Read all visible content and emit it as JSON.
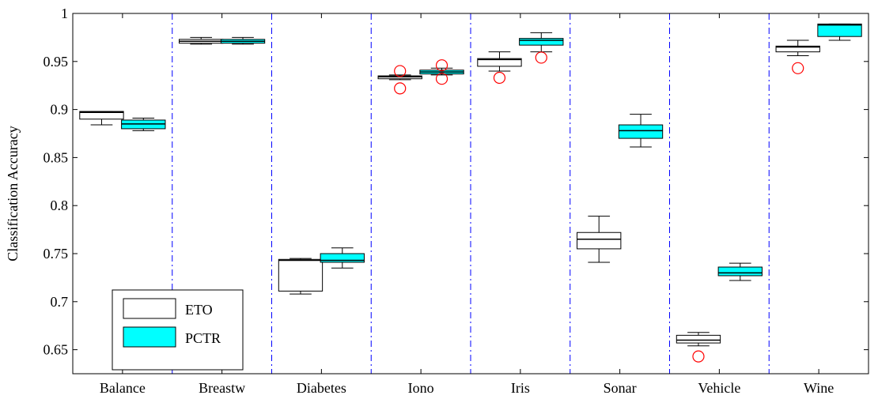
{
  "chart_data": {
    "type": "boxplot",
    "title": "",
    "xlabel": "",
    "ylabel": "Classification Accuracy",
    "ylim": [
      0.625,
      1.0
    ],
    "yticks": [
      0.65,
      0.7,
      0.75,
      0.8,
      0.85,
      0.9,
      0.95,
      1
    ],
    "ytick_labels": [
      "0.65",
      "0.7",
      "0.75",
      "0.8",
      "0.85",
      "0.9",
      "0.95",
      "1"
    ],
    "categories": [
      "Balance",
      "Breastw",
      "Diabetes",
      "Iono",
      "Iris",
      "Sonar",
      "Vehicle",
      "Wine"
    ],
    "grid": false,
    "separators": "dash-dot vertical lines between categories",
    "legend_position": "bottom-left",
    "colors": {
      "ETO": "#ffffff",
      "PCTR": "#00ffff",
      "outlier": "#ff0000",
      "separator": "#0000ff"
    },
    "series": [
      {
        "name": "ETO",
        "boxes": [
          {
            "whisker_low": 0.884,
            "q1": 0.89,
            "median": 0.897,
            "q3": 0.898,
            "whisker_high": 0.898,
            "outliers": []
          },
          {
            "whisker_low": 0.968,
            "q1": 0.969,
            "median": 0.971,
            "q3": 0.973,
            "whisker_high": 0.975,
            "outliers": []
          },
          {
            "whisker_low": 0.708,
            "q1": 0.711,
            "median": 0.743,
            "q3": 0.744,
            "whisker_high": 0.745,
            "outliers": []
          },
          {
            "whisker_low": 0.931,
            "q1": 0.932,
            "median": 0.934,
            "q3": 0.935,
            "whisker_high": 0.936,
            "outliers": [
              0.94,
              0.922
            ]
          },
          {
            "whisker_low": 0.94,
            "q1": 0.945,
            "median": 0.952,
            "q3": 0.953,
            "whisker_high": 0.96,
            "outliers": [
              0.933
            ]
          },
          {
            "whisker_low": 0.741,
            "q1": 0.755,
            "median": 0.765,
            "q3": 0.772,
            "whisker_high": 0.789,
            "outliers": []
          },
          {
            "whisker_low": 0.654,
            "q1": 0.657,
            "median": 0.66,
            "q3": 0.665,
            "whisker_high": 0.668,
            "outliers": [
              0.643
            ]
          },
          {
            "whisker_low": 0.956,
            "q1": 0.96,
            "median": 0.965,
            "q3": 0.966,
            "whisker_high": 0.972,
            "outliers": [
              0.943
            ]
          }
        ]
      },
      {
        "name": "PCTR",
        "boxes": [
          {
            "whisker_low": 0.878,
            "q1": 0.88,
            "median": 0.885,
            "q3": 0.889,
            "whisker_high": 0.891,
            "outliers": []
          },
          {
            "whisker_low": 0.968,
            "q1": 0.969,
            "median": 0.971,
            "q3": 0.973,
            "whisker_high": 0.975,
            "outliers": []
          },
          {
            "whisker_low": 0.735,
            "q1": 0.741,
            "median": 0.743,
            "q3": 0.75,
            "whisker_high": 0.756,
            "outliers": []
          },
          {
            "whisker_low": 0.936,
            "q1": 0.937,
            "median": 0.939,
            "q3": 0.941,
            "whisker_high": 0.943,
            "outliers": [
              0.946,
              0.932
            ]
          },
          {
            "whisker_low": 0.96,
            "q1": 0.967,
            "median": 0.972,
            "q3": 0.974,
            "whisker_high": 0.98,
            "outliers": [
              0.954
            ]
          },
          {
            "whisker_low": 0.861,
            "q1": 0.87,
            "median": 0.878,
            "q3": 0.884,
            "whisker_high": 0.895,
            "outliers": []
          },
          {
            "whisker_low": 0.722,
            "q1": 0.727,
            "median": 0.73,
            "q3": 0.736,
            "whisker_high": 0.74,
            "outliers": []
          },
          {
            "whisker_low": 0.972,
            "q1": 0.976,
            "median": 0.988,
            "q3": 0.989,
            "whisker_high": 0.989,
            "outliers": []
          }
        ]
      }
    ]
  }
}
